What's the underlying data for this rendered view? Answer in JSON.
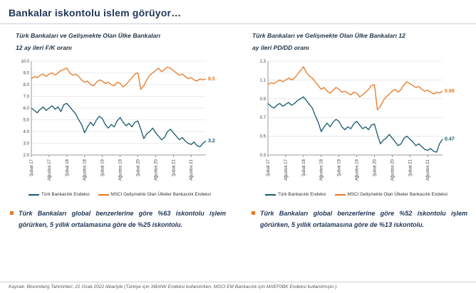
{
  "page": {
    "title": "Bankalar iskontolu islem görüyor…",
    "footer": "Kaynak: Bloomberg Tahminleri, 21 Ocak 2022  itibariyle (Türkiye için XBANK Endeksi kullanılırken, MSCI EM Bankacılık için MXEF0BK Endeksi kullanılmıştır.)"
  },
  "colors": {
    "turk": "#17596e",
    "em": "#e87722",
    "accent": "#e87722",
    "heading": "#1f3554",
    "grid": "#d9d9d9",
    "axis": "#808080"
  },
  "charts": [
    {
      "title_line1": "Türk Bankaları ve Gelişmekte Olan Ülke Bankaları",
      "title_line2": "12 ay ileri F/K oranı"
    },
    {
      "title_line1": "Türk Bankaları ve Gelişmekte Olan Ülke Bankaları 12",
      "title_line2": "ay ileri PD/DD oranı"
    }
  ],
  "bullets": [
    {
      "text": "Türk Bankaları global benzerlerine göre %63 iskontolu işlem görürken, 5 yıllık ortalamasına göre de %25 iskontolu."
    },
    {
      "text": "Türk Bankaları global benzerlerine göre %52 iskontolu işlem görürken, 5 yıllık ortalamasına göre de %13 iskontolu."
    }
  ],
  "chart_data": [
    {
      "type": "line",
      "title": "Türk Bankaları ve Gelişmekte Olan Ülke Bankaları 12 ay ileri F/K oranı",
      "ylim": [
        2,
        10
      ],
      "yticks": [
        {
          "v": 2,
          "label": "2.0"
        },
        {
          "v": 3,
          "label": "3.0"
        },
        {
          "v": 4,
          "label": "4.0"
        },
        {
          "v": 5,
          "label": "5.0"
        },
        {
          "v": 6,
          "label": "6.0"
        },
        {
          "v": 7,
          "label": "7.0"
        },
        {
          "v": 8,
          "label": "8.0"
        },
        {
          "v": 9,
          "label": "9.0"
        },
        {
          "v": 10,
          "label": "10.0"
        }
      ],
      "xticks": [
        {
          "i": 0,
          "label": "Şubat 17"
        },
        {
          "i": 6,
          "label": "Ağustos 17"
        },
        {
          "i": 12,
          "label": "Şubat 18"
        },
        {
          "i": 18,
          "label": "Ağustos 18"
        },
        {
          "i": 24,
          "label": "Şubat 19"
        },
        {
          "i": 30,
          "label": "Ağustos 19"
        },
        {
          "i": 36,
          "label": "Şubat 20"
        },
        {
          "i": 42,
          "label": "Ağustos 20"
        },
        {
          "i": 48,
          "label": "Şubat 21"
        },
        {
          "i": 54,
          "label": "Ağustos 21"
        }
      ],
      "legend_position": "bottom",
      "grid": true,
      "series": [
        {
          "name": "Türk Bankacılık Endeksi",
          "color": "turk",
          "end_label": "3.2",
          "values": [
            6.0,
            5.8,
            5.6,
            5.9,
            6.1,
            5.8,
            6.0,
            6.2,
            5.9,
            6.1,
            5.7,
            6.3,
            6.4,
            6.1,
            5.8,
            5.5,
            5.0,
            4.6,
            3.9,
            4.4,
            4.8,
            4.5,
            5.0,
            5.3,
            5.1,
            4.6,
            4.3,
            4.6,
            4.4,
            4.9,
            5.2,
            4.8,
            4.5,
            4.7,
            4.4,
            4.8,
            4.9,
            4.2,
            3.4,
            3.8,
            4.0,
            4.3,
            3.9,
            3.6,
            3.3,
            3.5,
            4.0,
            4.2,
            3.9,
            3.6,
            3.3,
            3.5,
            3.2,
            3.0,
            2.9,
            3.1,
            2.8,
            2.7,
            3.0,
            3.2
          ]
        },
        {
          "name": "MSCI Gelişmekte Olan Ülkeler Bankacılık Endeksi",
          "color": "em",
          "end_label": "8.5",
          "values": [
            8.5,
            8.7,
            8.6,
            8.8,
            8.9,
            8.7,
            8.9,
            9.0,
            8.8,
            9.0,
            9.2,
            9.3,
            9.4,
            9.0,
            8.8,
            8.9,
            8.7,
            8.4,
            8.2,
            8.3,
            8.0,
            7.9,
            8.2,
            8.4,
            8.3,
            8.1,
            8.2,
            8.0,
            7.9,
            8.2,
            8.1,
            7.8,
            8.0,
            8.3,
            8.6,
            8.9,
            9.0,
            7.6,
            7.9,
            8.4,
            8.8,
            9.0,
            9.2,
            9.4,
            9.1,
            9.3,
            9.5,
            9.4,
            9.2,
            9.0,
            8.8,
            8.9,
            8.7,
            8.5,
            8.6,
            8.4,
            8.3,
            8.5,
            8.4,
            8.5
          ]
        }
      ]
    },
    {
      "type": "line",
      "title": "Türk Bankaları ve Gelişmekte Olan Ülke Bankaları 12 ay ileri PD/DD oranı",
      "ylim": [
        0.3,
        1.3
      ],
      "yticks": [
        {
          "v": 0.3,
          "label": "0.3"
        },
        {
          "v": 0.5,
          "label": "0.5"
        },
        {
          "v": 0.7,
          "label": "0.7"
        },
        {
          "v": 0.9,
          "label": "0.9"
        },
        {
          "v": 1.1,
          "label": "1.1"
        },
        {
          "v": 1.3,
          "label": "1.3"
        }
      ],
      "xticks": [
        {
          "i": 0,
          "label": "Şubat 17"
        },
        {
          "i": 6,
          "label": "Ağustos 17"
        },
        {
          "i": 12,
          "label": "Şubat 18"
        },
        {
          "i": 18,
          "label": "Ağustos 18"
        },
        {
          "i": 24,
          "label": "Şubat 19"
        },
        {
          "i": 30,
          "label": "Ağustos 19"
        },
        {
          "i": 36,
          "label": "Şubat 20"
        },
        {
          "i": 42,
          "label": "Ağustos 20"
        },
        {
          "i": 48,
          "label": "Şubat 21"
        },
        {
          "i": 54,
          "label": "Ağustos 21"
        }
      ],
      "legend_position": "bottom",
      "grid": true,
      "series": [
        {
          "name": "Türk Bankacılık Endeksi",
          "color": "turk",
          "end_label": "0.47",
          "values": [
            0.85,
            0.82,
            0.8,
            0.83,
            0.85,
            0.82,
            0.84,
            0.86,
            0.83,
            0.85,
            0.88,
            0.9,
            0.92,
            0.88,
            0.84,
            0.8,
            0.72,
            0.65,
            0.55,
            0.6,
            0.64,
            0.6,
            0.65,
            0.68,
            0.66,
            0.6,
            0.57,
            0.6,
            0.58,
            0.63,
            0.66,
            0.62,
            0.58,
            0.6,
            0.57,
            0.62,
            0.63,
            0.52,
            0.42,
            0.46,
            0.48,
            0.52,
            0.48,
            0.44,
            0.4,
            0.42,
            0.48,
            0.5,
            0.47,
            0.44,
            0.4,
            0.42,
            0.39,
            0.36,
            0.35,
            0.37,
            0.34,
            0.33,
            0.42,
            0.47
          ]
        },
        {
          "name": "MSCI Gelişmekte Olan Ülkeler Bankacılık Endeksi",
          "color": "em",
          "end_label": "0.98",
          "values": [
            1.05,
            1.07,
            1.06,
            1.08,
            1.1,
            1.08,
            1.1,
            1.12,
            1.1,
            1.12,
            1.16,
            1.2,
            1.24,
            1.18,
            1.14,
            1.12,
            1.08,
            1.04,
            1.0,
            1.02,
            0.98,
            0.96,
            0.99,
            1.02,
            1.0,
            0.97,
            0.98,
            0.96,
            0.94,
            0.97,
            0.96,
            0.92,
            0.94,
            0.97,
            1.0,
            1.04,
            1.05,
            0.78,
            0.82,
            0.88,
            0.92,
            0.95,
            0.98,
            1.0,
            0.97,
            1.0,
            1.05,
            1.08,
            1.06,
            1.04,
            1.02,
            1.03,
            1.0,
            0.98,
            0.99,
            0.97,
            0.95,
            0.97,
            0.96,
            0.98
          ]
        }
      ]
    }
  ]
}
